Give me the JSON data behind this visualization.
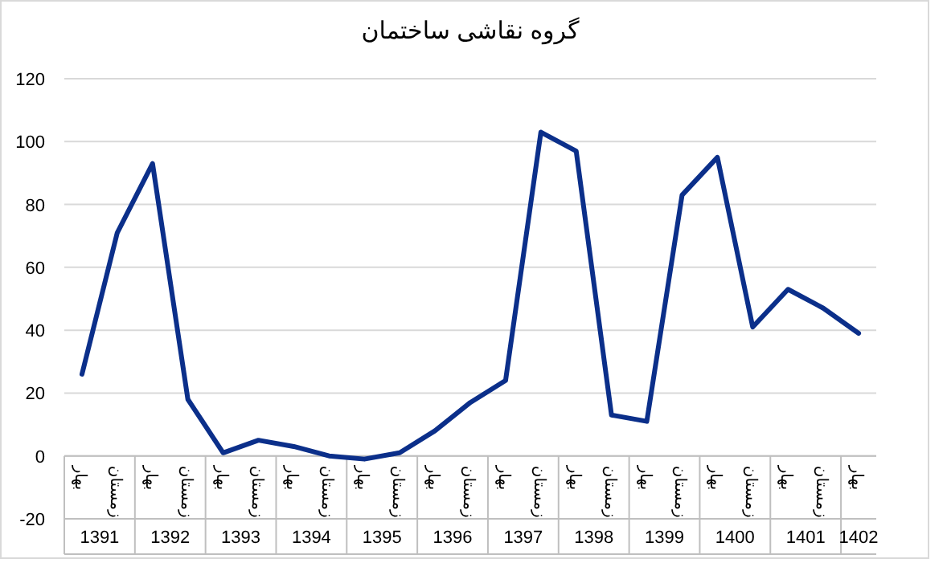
{
  "chart_data": {
    "type": "line",
    "title": "گروه نقاشی ساختمان",
    "categories": [
      "بهار",
      "زمستان",
      "بهار",
      "زمستان",
      "بهار",
      "زمستان",
      "بهار",
      "زمستان",
      "بهار",
      "زمستان",
      "بهار",
      "زمستان",
      "بهار",
      "زمستان",
      "بهار",
      "زمستان",
      "بهار",
      "زمستان",
      "بهار",
      "زمستان",
      "بهار",
      "زمستان",
      "بهار"
    ],
    "series": [
      {
        "color": "#0b2f8a",
        "values": [
          26,
          71,
          93,
          18,
          1,
          5,
          3,
          0,
          -1,
          1,
          8,
          17,
          24,
          103,
          97,
          13,
          11,
          83,
          95,
          41,
          53,
          47,
          39
        ]
      }
    ],
    "annotations": [
      {
        "text": "1391"
      },
      {
        "text": "1392"
      },
      {
        "text": "1393"
      },
      {
        "text": "1394"
      },
      {
        "text": "1395"
      },
      {
        "text": "1396"
      },
      {
        "text": "1397"
      },
      {
        "text": "1398"
      },
      {
        "text": "1399"
      },
      {
        "text": "1400"
      },
      {
        "text": "1401"
      },
      {
        "text": "1402"
      }
    ],
    "ylim": [
      -20,
      120
    ],
    "yticks": [
      -20,
      0,
      20,
      40,
      60,
      80,
      100,
      120
    ],
    "grid": "y",
    "marker": "none",
    "line_style": "solid"
  }
}
